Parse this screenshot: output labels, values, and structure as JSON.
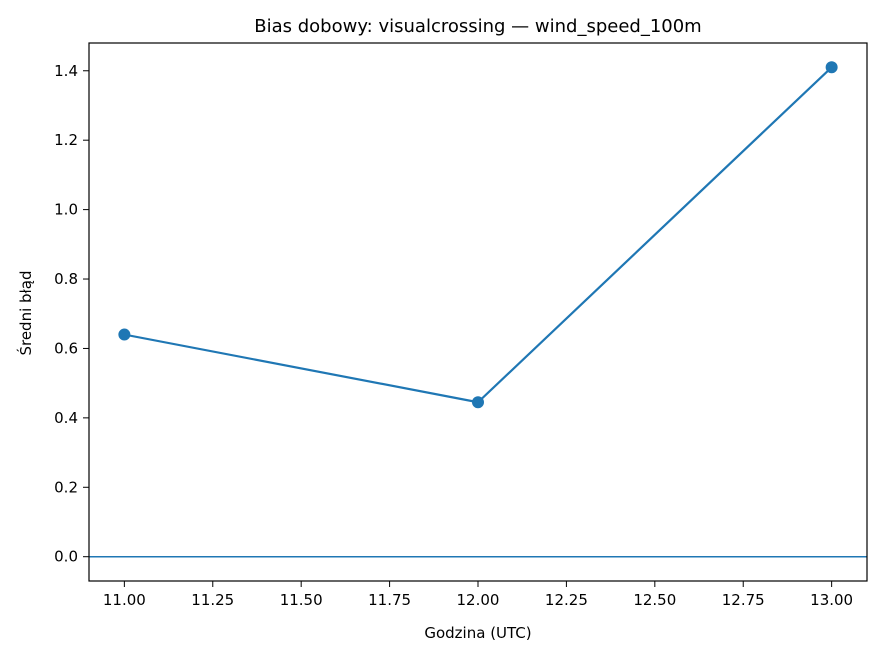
{
  "chart_data": {
    "type": "line",
    "title": "Bias dobowy: visualcrossing — wind_speed_100m",
    "xlabel": "Godzina (UTC)",
    "ylabel": "Średni błąd",
    "xlim": [
      10.9,
      13.1
    ],
    "ylim": [
      -0.07,
      1.48
    ],
    "xticks": [
      11.0,
      11.25,
      11.5,
      11.75,
      12.0,
      12.25,
      12.5,
      12.75,
      13.0
    ],
    "xtick_labels": [
      "11.00",
      "11.25",
      "11.50",
      "11.75",
      "12.00",
      "12.25",
      "12.50",
      "12.75",
      "13.00"
    ],
    "yticks": [
      0.0,
      0.2,
      0.4,
      0.6,
      0.8,
      1.0,
      1.2,
      1.4
    ],
    "ytick_labels": [
      "0.0",
      "0.2",
      "0.4",
      "0.6",
      "0.8",
      "1.0",
      "1.2",
      "1.4"
    ],
    "series": [
      {
        "x": [
          11,
          12,
          13
        ],
        "y": [
          0.64,
          0.445,
          1.41
        ],
        "color": "#1f77b4",
        "marker": "circle"
      }
    ],
    "hlines": [
      {
        "y": 0.0,
        "color": "#1f77b4"
      }
    ],
    "grid": false,
    "legend": "none"
  }
}
